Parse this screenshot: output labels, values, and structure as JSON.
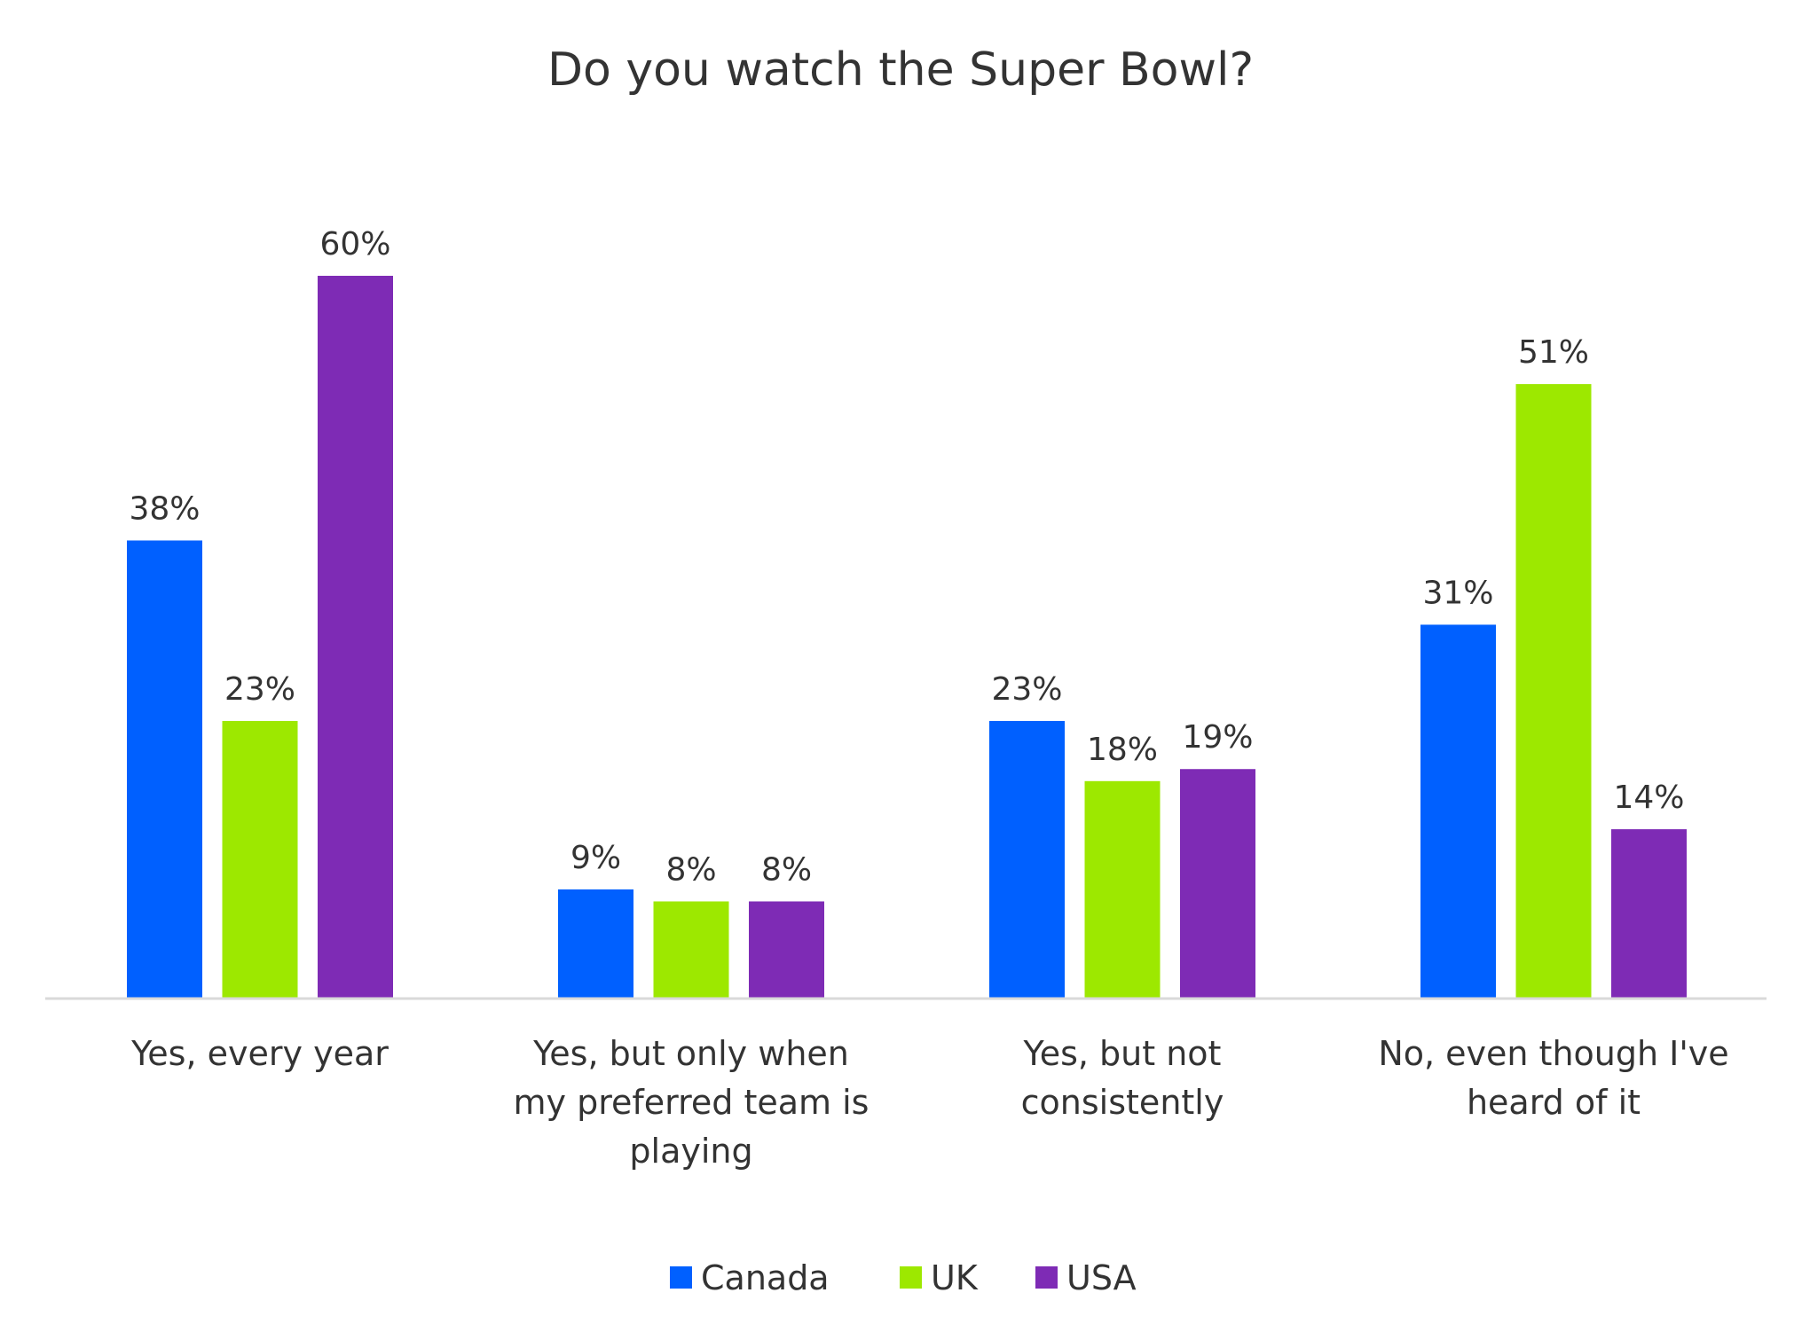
{
  "chart_data": {
    "type": "bar",
    "title": "Do you watch the Super Bowl?",
    "xlabel": "",
    "ylabel": "",
    "ylim": [
      0,
      60
    ],
    "grid": false,
    "legend_position": "bottom",
    "value_format": "percent",
    "categories": [
      [
        "Yes, every year"
      ],
      [
        "Yes, but only when",
        "my preferred team is",
        "playing"
      ],
      [
        "Yes, but not",
        "consistently"
      ],
      [
        "No, even though I've",
        "heard of it"
      ]
    ],
    "series": [
      {
        "name": "Canada",
        "color": "#0060FF",
        "values": [
          38,
          9,
          23,
          31
        ]
      },
      {
        "name": "UK",
        "color": "#9DE800",
        "values": [
          23,
          8,
          18,
          51
        ]
      },
      {
        "name": "USA",
        "color": "#7E2BB5",
        "values": [
          60,
          8,
          19,
          14
        ]
      }
    ]
  }
}
